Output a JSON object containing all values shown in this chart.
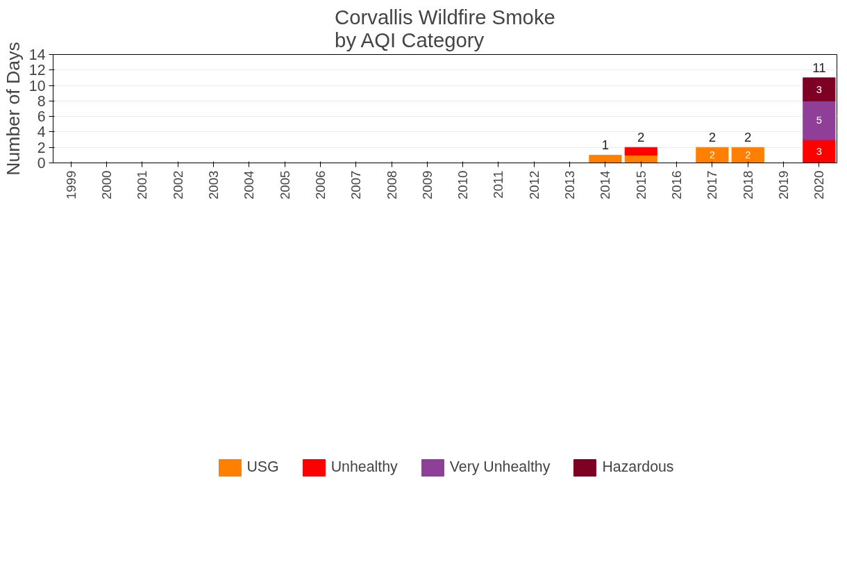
{
  "chart_data": {
    "type": "bar",
    "title": "Corvallis Wildfire Smoke\nby AQI Category",
    "ylabel": "Number of Days",
    "categories": [
      "1999",
      "2000",
      "2001",
      "2002",
      "2003",
      "2004",
      "2005",
      "2006",
      "2007",
      "2008",
      "2009",
      "2010",
      "2011",
      "2012",
      "2013",
      "2014",
      "2015",
      "2016",
      "2017",
      "2018",
      "2019",
      "2020"
    ],
    "stacked": true,
    "series": [
      {
        "name": "USG",
        "color": "#ff8000",
        "values": [
          null,
          null,
          null,
          null,
          null,
          null,
          null,
          null,
          null,
          null,
          null,
          null,
          null,
          null,
          null,
          1,
          1,
          null,
          2,
          2,
          null,
          null
        ],
        "value_labels": [
          null,
          null,
          null,
          null,
          null,
          null,
          null,
          null,
          null,
          null,
          null,
          null,
          null,
          null,
          null,
          null,
          null,
          null,
          "2",
          "2",
          null,
          null
        ]
      },
      {
        "name": "Unhealthy",
        "color": "#ff0000",
        "values": [
          null,
          null,
          null,
          null,
          null,
          null,
          null,
          null,
          null,
          null,
          null,
          null,
          null,
          null,
          null,
          null,
          1,
          null,
          null,
          null,
          null,
          3
        ],
        "value_labels": [
          null,
          null,
          null,
          null,
          null,
          null,
          null,
          null,
          null,
          null,
          null,
          null,
          null,
          null,
          null,
          null,
          null,
          null,
          null,
          null,
          null,
          "3"
        ]
      },
      {
        "name": "Very Unhealthy",
        "color": "#8f3f97",
        "values": [
          null,
          null,
          null,
          null,
          null,
          null,
          null,
          null,
          null,
          null,
          null,
          null,
          null,
          null,
          null,
          null,
          null,
          null,
          null,
          null,
          null,
          5
        ],
        "value_labels": [
          null,
          null,
          null,
          null,
          null,
          null,
          null,
          null,
          null,
          null,
          null,
          null,
          null,
          null,
          null,
          null,
          null,
          null,
          null,
          null,
          null,
          "5"
        ]
      },
      {
        "name": "Hazardous",
        "color": "#7e0023",
        "values": [
          null,
          null,
          null,
          null,
          null,
          null,
          null,
          null,
          null,
          null,
          null,
          null,
          null,
          null,
          null,
          null,
          null,
          null,
          null,
          null,
          null,
          3
        ],
        "value_labels": [
          null,
          null,
          null,
          null,
          null,
          null,
          null,
          null,
          null,
          null,
          null,
          null,
          null,
          null,
          null,
          null,
          null,
          null,
          null,
          null,
          null,
          "3"
        ]
      }
    ],
    "totals": [
      null,
      null,
      null,
      null,
      null,
      null,
      null,
      null,
      null,
      null,
      null,
      null,
      null,
      null,
      null,
      "1",
      "2",
      null,
      "2",
      "2",
      null,
      "11"
    ],
    "ylim": [
      0,
      14
    ],
    "yticks": [
      0,
      2,
      4,
      6,
      8,
      10,
      12,
      14
    ],
    "grid": "y",
    "legend": "bottom"
  }
}
